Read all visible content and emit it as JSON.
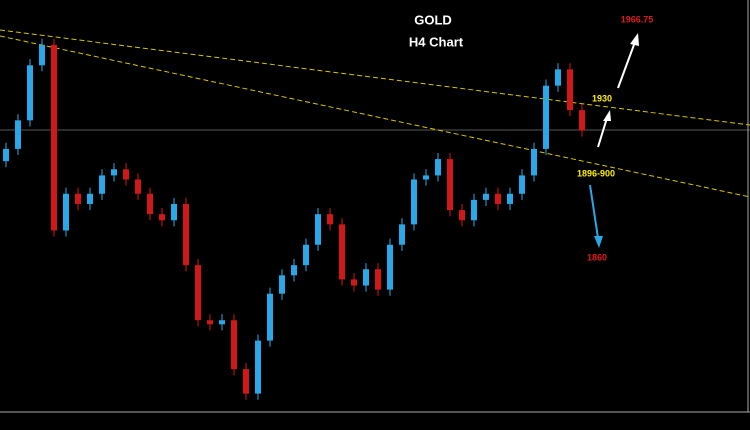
{
  "chart_data": {
    "type": "candlestick",
    "title": "GOLD",
    "subtitle": "H4 Chart",
    "open": [
      1900,
      1906,
      1920,
      1947,
      1957,
      1866,
      1884,
      1879,
      1884,
      1893,
      1896,
      1891,
      1884,
      1874,
      1871,
      1879,
      1849,
      1822,
      1820,
      1822,
      1798,
      1786,
      1812,
      1835,
      1844,
      1849,
      1859,
      1874,
      1869,
      1842,
      1839,
      1847,
      1837,
      1859,
      1869,
      1891,
      1893,
      1901,
      1876,
      1871,
      1881,
      1884,
      1879,
      1884,
      1893,
      1906,
      1937,
      1945,
      1925
    ],
    "high": [
      1909,
      1923,
      1950,
      1960,
      1960,
      1887,
      1887,
      1887,
      1896,
      1899,
      1899,
      1894,
      1887,
      1877,
      1882,
      1882,
      1852,
      1825,
      1825,
      1825,
      1801,
      1815,
      1838,
      1847,
      1852,
      1862,
      1877,
      1877,
      1872,
      1845,
      1850,
      1850,
      1862,
      1872,
      1894,
      1896,
      1904,
      1904,
      1879,
      1884,
      1887,
      1887,
      1887,
      1896,
      1909,
      1940,
      1948,
      1948,
      1928
    ],
    "low": [
      1897,
      1903,
      1917,
      1944,
      1863,
      1863,
      1876,
      1876,
      1881,
      1890,
      1888,
      1881,
      1871,
      1868,
      1868,
      1846,
      1819,
      1817,
      1817,
      1795,
      1783,
      1783,
      1809,
      1832,
      1841,
      1846,
      1856,
      1866,
      1839,
      1836,
      1836,
      1834,
      1834,
      1856,
      1866,
      1888,
      1890,
      1873,
      1868,
      1868,
      1878,
      1876,
      1876,
      1881,
      1890,
      1903,
      1934,
      1922,
      1912
    ],
    "close": [
      1906,
      1920,
      1947,
      1957,
      1866,
      1884,
      1879,
      1884,
      1893,
      1896,
      1891,
      1884,
      1874,
      1871,
      1879,
      1849,
      1822,
      1820,
      1822,
      1798,
      1786,
      1812,
      1835,
      1844,
      1849,
      1859,
      1874,
      1869,
      1842,
      1839,
      1847,
      1837,
      1859,
      1869,
      1891,
      1893,
      1901,
      1876,
      1871,
      1881,
      1884,
      1879,
      1884,
      1893,
      1906,
      1937,
      1945,
      1925,
      1915
    ],
    "up_color": "#2aa7e6",
    "down_color": "#d01818",
    "ylim": [
      1777,
      1979
    ],
    "annotations": [
      {
        "text": "1966.75",
        "color": "#e01b1b"
      },
      {
        "text": "1930",
        "color": "#ffee00"
      },
      {
        "text": "1896-900",
        "color": "#ffee00"
      },
      {
        "text": "1860",
        "color": "#e01b1b"
      }
    ]
  }
}
